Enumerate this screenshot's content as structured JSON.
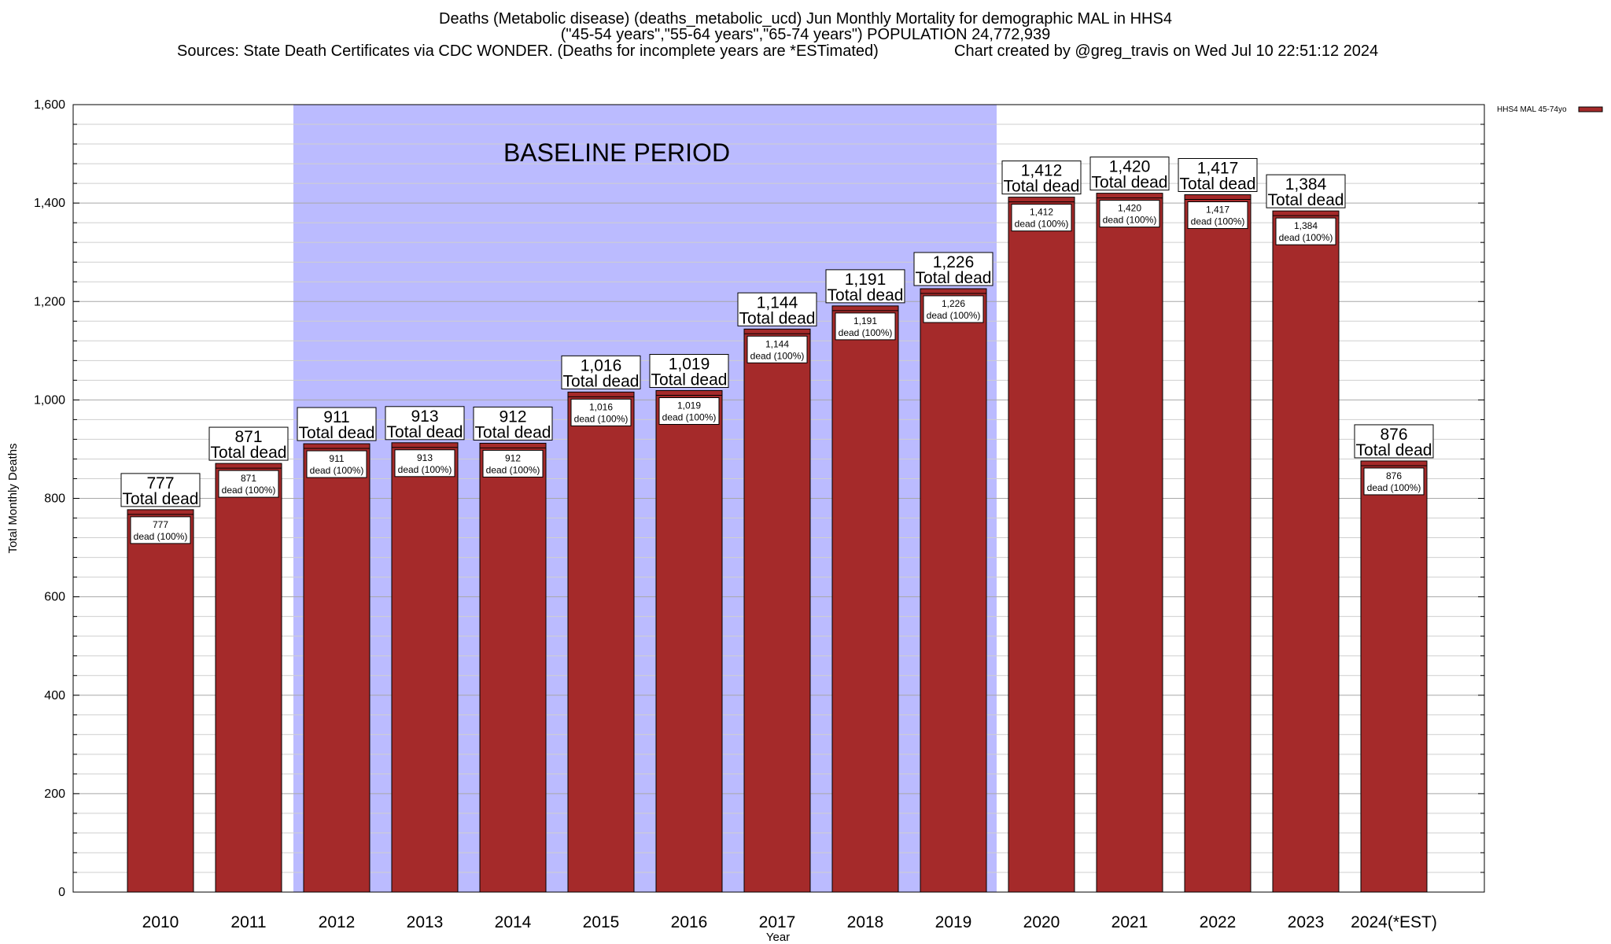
{
  "header": {
    "title_line1": "Deaths (Metabolic disease) (deaths_metabolic_ucd) Jun Monthly Mortality for demographic MAL in HHS4",
    "title_line2": "(\"45-54 years\",\"55-64 years\",\"65-74 years\") POPULATION 24,772,939",
    "sources": "Sources: State Death Certificates via CDC WONDER. (Deaths for incomplete years are *ESTimated)",
    "created": "Chart created by @greg_travis on Wed Jul 10 22:51:12 2024"
  },
  "chart_data": {
    "type": "bar",
    "title": "Deaths (Metabolic disease) (deaths_metabolic_ucd) Jun Monthly Mortality for demographic MAL in HHS4",
    "xlabel": "Year",
    "ylabel": "Total Monthly Deaths",
    "ylim": [
      0,
      1600
    ],
    "y_ticks": [
      0,
      200,
      400,
      600,
      800,
      1000,
      1200,
      1400,
      1600
    ],
    "y_tick_labels": [
      "0",
      "200",
      "400",
      "600",
      "800",
      "1,000",
      "1,200",
      "1,400",
      "1,600"
    ],
    "grid": true,
    "categories": [
      "2010",
      "2011",
      "2012",
      "2013",
      "2014",
      "2015",
      "2016",
      "2017",
      "2018",
      "2019",
      "2020",
      "2021",
      "2022",
      "2023",
      "2024(*EST)"
    ],
    "series": [
      {
        "name": "HHS4 MAL 45-74yo",
        "values": [
          777,
          871,
          911,
          913,
          912,
          1016,
          1019,
          1144,
          1191,
          1226,
          1412,
          1420,
          1417,
          1384,
          876
        ],
        "color": "#a52a2a"
      }
    ],
    "value_labels": [
      "777",
      "871",
      "911",
      "913",
      "912",
      "1,016",
      "1,019",
      "1,144",
      "1,191",
      "1,226",
      "1,412",
      "1,420",
      "1,417",
      "1,384",
      "876"
    ],
    "total_label": "Total dead",
    "inner_label_suffix": "dead (100%)",
    "baseline": {
      "label": "BASELINE PERIOD",
      "from": "2012",
      "to": "2019",
      "color": "#bbbbff"
    },
    "legend": {
      "position": "top-right",
      "label": "HHS4 MAL 45-74yo"
    }
  }
}
